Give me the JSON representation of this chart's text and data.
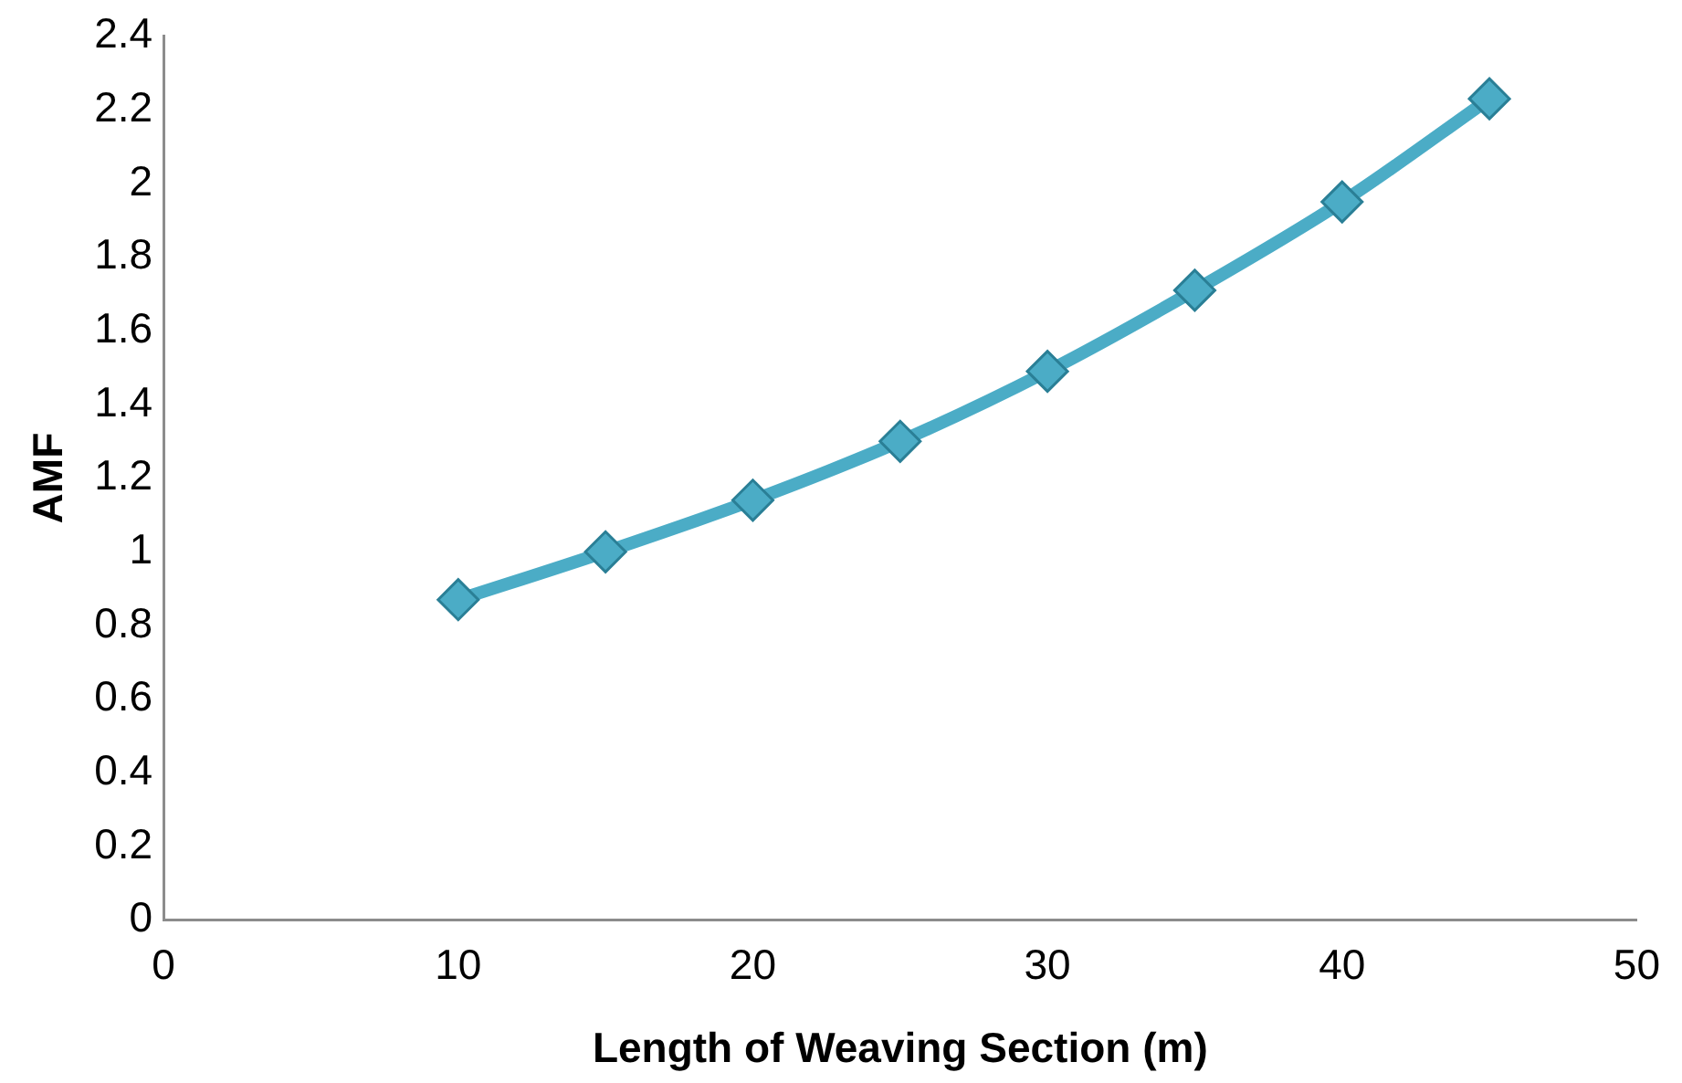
{
  "chart_data": {
    "type": "line",
    "xlabel": "Length of Weaving Section (m)",
    "ylabel": "AMF",
    "x": [
      10,
      15,
      20,
      25,
      30,
      35,
      40,
      45
    ],
    "series": [
      {
        "color": "#4bacc6",
        "values": [
          0.87,
          1.0,
          1.14,
          1.3,
          1.49,
          1.71,
          1.95,
          2.23
        ]
      }
    ],
    "xlim": [
      0,
      50
    ],
    "xticks": [
      0,
      10,
      20,
      30,
      40,
      50
    ],
    "ylim": [
      0,
      2.4
    ],
    "yticks": [
      0,
      0.2,
      0.4,
      0.6,
      0.8,
      1,
      1.2,
      1.4,
      1.6,
      1.8,
      2,
      2.2,
      2.4
    ],
    "grid": false,
    "legend": false,
    "marker": "diamond",
    "line_style": "solid"
  }
}
